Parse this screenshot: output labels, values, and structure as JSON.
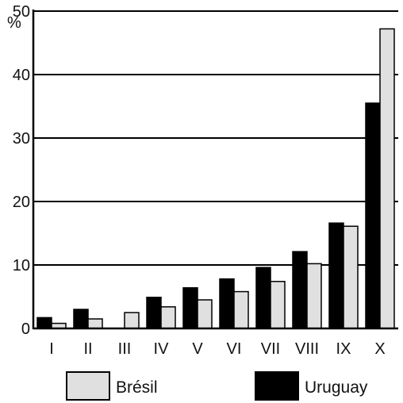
{
  "chart_data": {
    "type": "bar",
    "ylabel": "%",
    "ylim": [
      0,
      50
    ],
    "yticks": [
      "0",
      "10",
      "20",
      "30",
      "40",
      "50"
    ],
    "grid": true,
    "categories": [
      "I",
      "II",
      "III",
      "IV",
      "V",
      "VI",
      "VII",
      "VIII",
      "IX",
      "X"
    ],
    "series": [
      {
        "name": "Uruguay",
        "color": "#000000",
        "values": [
          1.7,
          3.0,
          0,
          4.9,
          6.4,
          7.8,
          9.6,
          12.1,
          16.6,
          35.5
        ]
      },
      {
        "name": "Brésil",
        "color": "#e0e0e0",
        "values": [
          0.8,
          1.5,
          2.5,
          3.4,
          4.5,
          5.8,
          7.4,
          10.2,
          16.1,
          47.2
        ]
      }
    ],
    "legend": [
      {
        "label": "Brésil",
        "color": "#e0e0e0"
      },
      {
        "label": "Uruguay",
        "color": "#000000"
      }
    ]
  }
}
